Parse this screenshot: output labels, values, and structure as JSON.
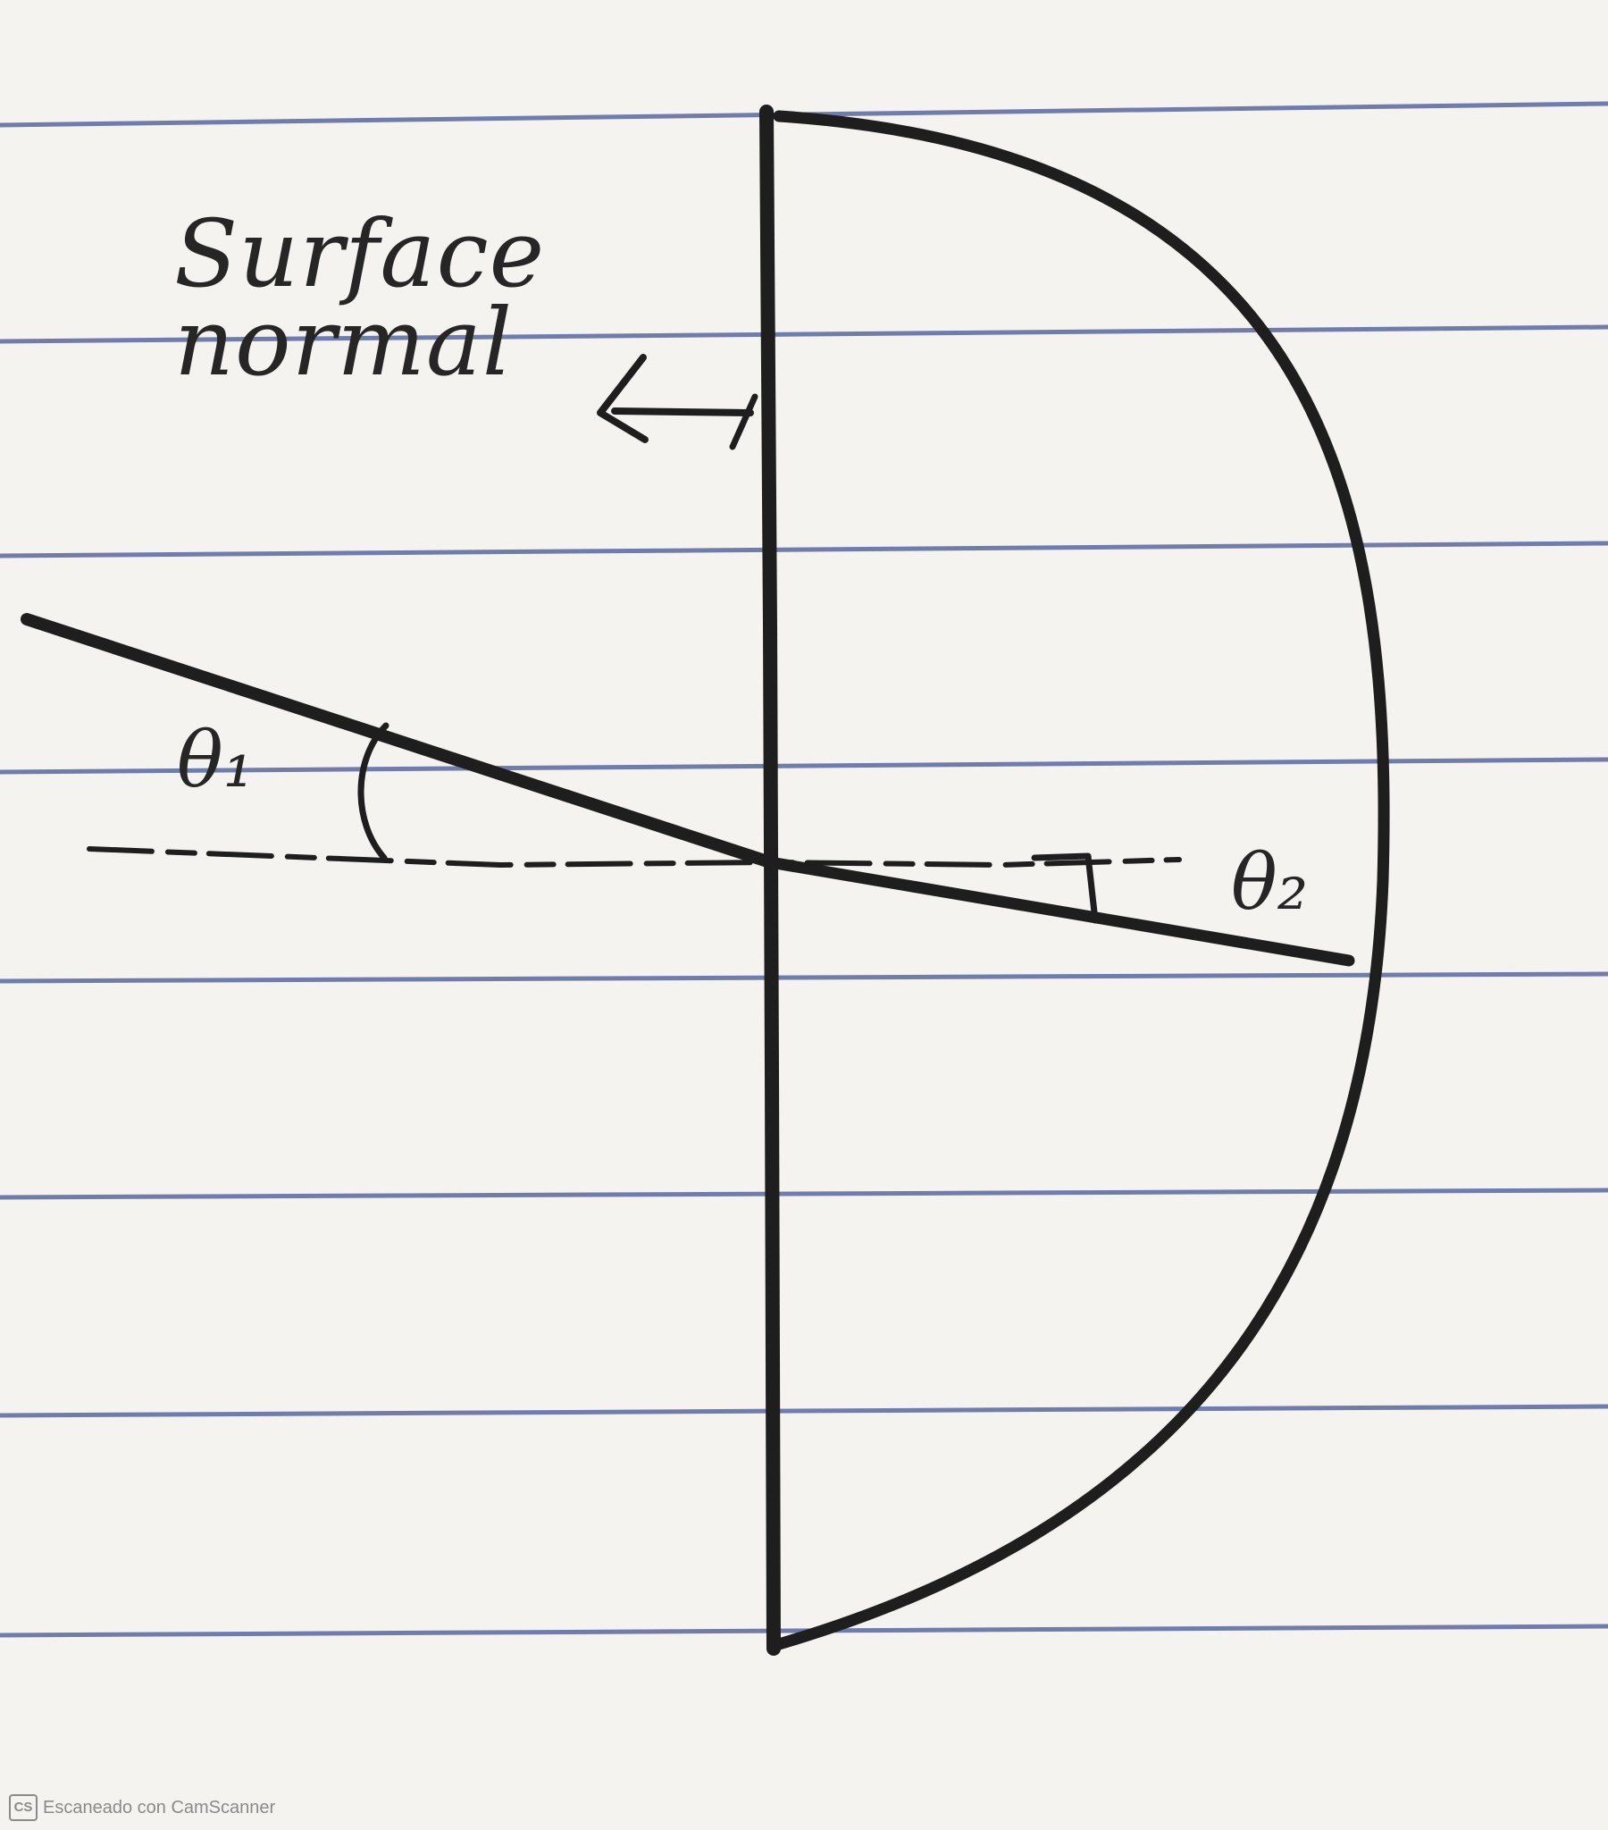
{
  "labels": {
    "surface_line1": "Surface",
    "surface_line2": "normal",
    "theta1": "θ₁",
    "theta2": "θ₂"
  },
  "watermark": {
    "logo_text": "CS",
    "text": "Escaneado con CamScanner"
  },
  "colors": {
    "paper": "#f4f3ef",
    "ruling": "#4e5f9c",
    "pencil": "#1e1e1e"
  }
}
